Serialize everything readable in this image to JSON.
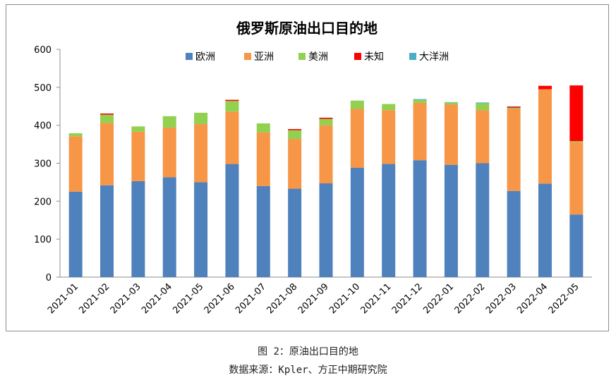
{
  "caption": "图 2：原油出口目的地",
  "source": "数据来源：Kpler、方正中期研究院",
  "chart_data": {
    "type": "bar",
    "stacked": true,
    "title": "俄罗斯原油出口目的地",
    "xlabel": "",
    "ylabel": "",
    "ylim": [
      0,
      600
    ],
    "yticks": [
      0,
      100,
      200,
      300,
      400,
      500,
      600
    ],
    "grid": false,
    "legend_position": "top",
    "categories": [
      "2021-01",
      "2021-02",
      "2021-03",
      "2021-04",
      "2021-05",
      "2021-06",
      "2021-07",
      "2021-08",
      "2021-09",
      "2021-10",
      "2021-11",
      "2021-12",
      "2022-01",
      "2022-02",
      "2022-03",
      "2022-04",
      "2022-05"
    ],
    "series": [
      {
        "name": "欧洲",
        "color": "#4f81bd",
        "values": [
          225,
          242,
          253,
          263,
          250,
          298,
          240,
          233,
          247,
          288,
          298,
          308,
          296,
          300,
          227,
          246,
          165
        ]
      },
      {
        "name": "亚洲",
        "color": "#f79646",
        "values": [
          146,
          164,
          130,
          131,
          153,
          138,
          141,
          131,
          153,
          155,
          142,
          151,
          159,
          140,
          217,
          249,
          190
        ]
      },
      {
        "name": "美洲",
        "color": "#92d050",
        "values": [
          8,
          22,
          14,
          30,
          30,
          28,
          24,
          23,
          17,
          22,
          16,
          8,
          5,
          18,
          2,
          0,
          3
        ]
      },
      {
        "name": "未知",
        "color": "#ff0000",
        "values": [
          0,
          3,
          0,
          0,
          0,
          3,
          0,
          3,
          3,
          0,
          0,
          0,
          0,
          0,
          3,
          9,
          147
        ]
      },
      {
        "name": "大洋洲",
        "color": "#4bacc6",
        "values": [
          0,
          0,
          0,
          0,
          0,
          0,
          0,
          0,
          0,
          0,
          0,
          2,
          1,
          2,
          1,
          0,
          0
        ]
      }
    ]
  }
}
